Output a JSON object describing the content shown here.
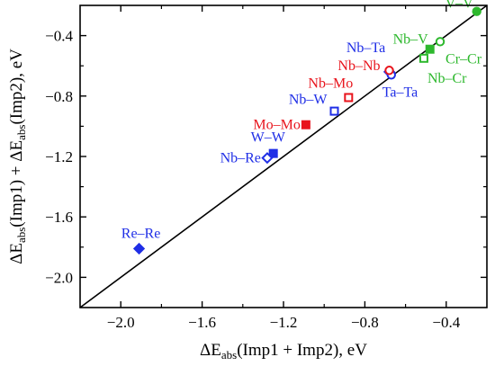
{
  "chart_data": {
    "type": "scatter",
    "xlabel": {
      "pre": "ΔE",
      "sub": "abs",
      "post": "(Imp1 + Imp2), eV"
    },
    "ylabel": {
      "pre": "ΔE",
      "sub": "abs",
      "mid": "(Imp1) + ΔE",
      "sub2": "abs",
      "post": "(Imp2), eV"
    },
    "xlim": [
      -2.2,
      -0.2
    ],
    "ylim": [
      -2.2,
      -0.2
    ],
    "xticks": [
      {
        "value": -2.0,
        "label": "−2.0"
      },
      {
        "value": -1.6,
        "label": "−1.6"
      },
      {
        "value": -1.2,
        "label": "−1.2"
      },
      {
        "value": -0.8,
        "label": "−0.8"
      },
      {
        "value": -0.4,
        "label": "−0.4"
      }
    ],
    "yticks": [
      {
        "value": -2.0,
        "label": "−2.0"
      },
      {
        "value": -1.6,
        "label": "−1.6"
      },
      {
        "value": -1.2,
        "label": "−1.2"
      },
      {
        "value": -0.8,
        "label": "−0.8"
      },
      {
        "value": -0.4,
        "label": "−0.4"
      }
    ],
    "reference_line": {
      "from": [
        -2.2,
        -2.2
      ],
      "to": [
        -0.2,
        -0.2
      ]
    },
    "colors": {
      "blue": "#1f2ee6",
      "red": "#e8141c",
      "green": "#2db82d"
    },
    "points": [
      {
        "label": "V–V",
        "x": -0.25,
        "y": -0.24,
        "marker": "circle",
        "filled": true,
        "color": "green"
      },
      {
        "label": "Nb–V",
        "x": -0.48,
        "y": -0.49,
        "marker": "square",
        "filled": true,
        "color": "green"
      },
      {
        "label": "Cr–Cr",
        "x": -0.43,
        "y": -0.44,
        "marker": "circle",
        "filled": false,
        "color": "green"
      },
      {
        "label": "Nb–Cr",
        "x": -0.51,
        "y": -0.55,
        "marker": "square",
        "filled": false,
        "color": "green"
      },
      {
        "label": "Nb–Ta",
        "x": -0.68,
        "y": -0.64,
        "marker": "diamond",
        "filled": false,
        "color": "blue"
      },
      {
        "label": "Ta–Ta",
        "x": -0.67,
        "y": -0.66,
        "marker": "circle",
        "filled": false,
        "color": "blue"
      },
      {
        "label": "Nb–Nb",
        "x": -0.68,
        "y": -0.63,
        "marker": "circle",
        "filled": false,
        "color": "red"
      },
      {
        "label": "Nb–Mo",
        "x": -0.88,
        "y": -0.81,
        "marker": "square",
        "filled": false,
        "color": "red"
      },
      {
        "label": "Nb–W",
        "x": -0.95,
        "y": -0.9,
        "marker": "square",
        "filled": false,
        "color": "blue"
      },
      {
        "label": "Mo–Mo",
        "x": -1.09,
        "y": -0.99,
        "marker": "square",
        "filled": true,
        "color": "red"
      },
      {
        "label": "W–W",
        "x": -1.25,
        "y": -1.18,
        "marker": "square",
        "filled": true,
        "color": "blue"
      },
      {
        "label": "Nb–Re",
        "x": -1.28,
        "y": -1.21,
        "marker": "diamond",
        "filled": false,
        "color": "blue"
      },
      {
        "label": "Re–Re",
        "x": -1.91,
        "y": -1.81,
        "marker": "diamond",
        "filled": true,
        "color": "blue"
      }
    ]
  }
}
